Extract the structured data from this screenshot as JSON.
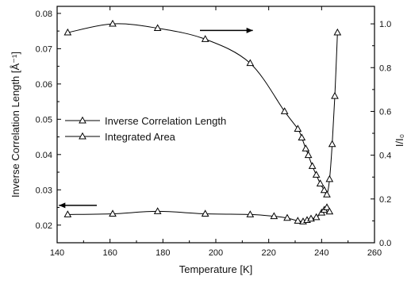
{
  "chart_data": {
    "type": "line",
    "xlabel": "Temperature [K]",
    "ylabel": "Inverse Correlation Length [Å⁻¹]",
    "y2label": "I/I₀",
    "xlim": [
      140,
      260
    ],
    "ylim": [
      0.015,
      0.082
    ],
    "y2lim": [
      0.0,
      1.08
    ],
    "xticks": [
      "140",
      "160",
      "180",
      "200",
      "220",
      "240",
      "260"
    ],
    "yticks": [
      "0.02",
      "0.03",
      "0.04",
      "0.05",
      "0.06",
      "0.07",
      "0.08"
    ],
    "y2ticks": [
      "0.0",
      "0.2",
      "0.4",
      "0.6",
      "0.8",
      "1.0"
    ],
    "marker": "open-triangle",
    "line_color": "#000000",
    "legend_position": "center-left",
    "grid": false,
    "series": [
      {
        "name": "Inverse Correlation Length",
        "axis": "left",
        "arrow": "left",
        "x": [
          144,
          161,
          178,
          196,
          213,
          222,
          227,
          231,
          233,
          234.5,
          236,
          238,
          240,
          241,
          242,
          243
        ],
        "y": [
          0.023,
          0.0232,
          0.0239,
          0.0232,
          0.023,
          0.0225,
          0.022,
          0.0212,
          0.021,
          0.0214,
          0.0218,
          0.0222,
          0.0235,
          0.0243,
          0.025,
          0.0238
        ]
      },
      {
        "name": "Integrated Area",
        "axis": "right",
        "arrow": "right",
        "x": [
          144,
          161,
          178,
          196,
          213,
          226,
          231,
          232.5,
          234,
          235,
          236.5,
          238,
          239.5,
          241,
          242,
          243,
          244,
          245,
          246
        ],
        "y": [
          0.96,
          1.0,
          0.98,
          0.93,
          0.82,
          0.6,
          0.52,
          0.48,
          0.43,
          0.4,
          0.35,
          0.31,
          0.27,
          0.24,
          0.22,
          0.29,
          0.45,
          0.67,
          0.96
        ]
      }
    ]
  }
}
